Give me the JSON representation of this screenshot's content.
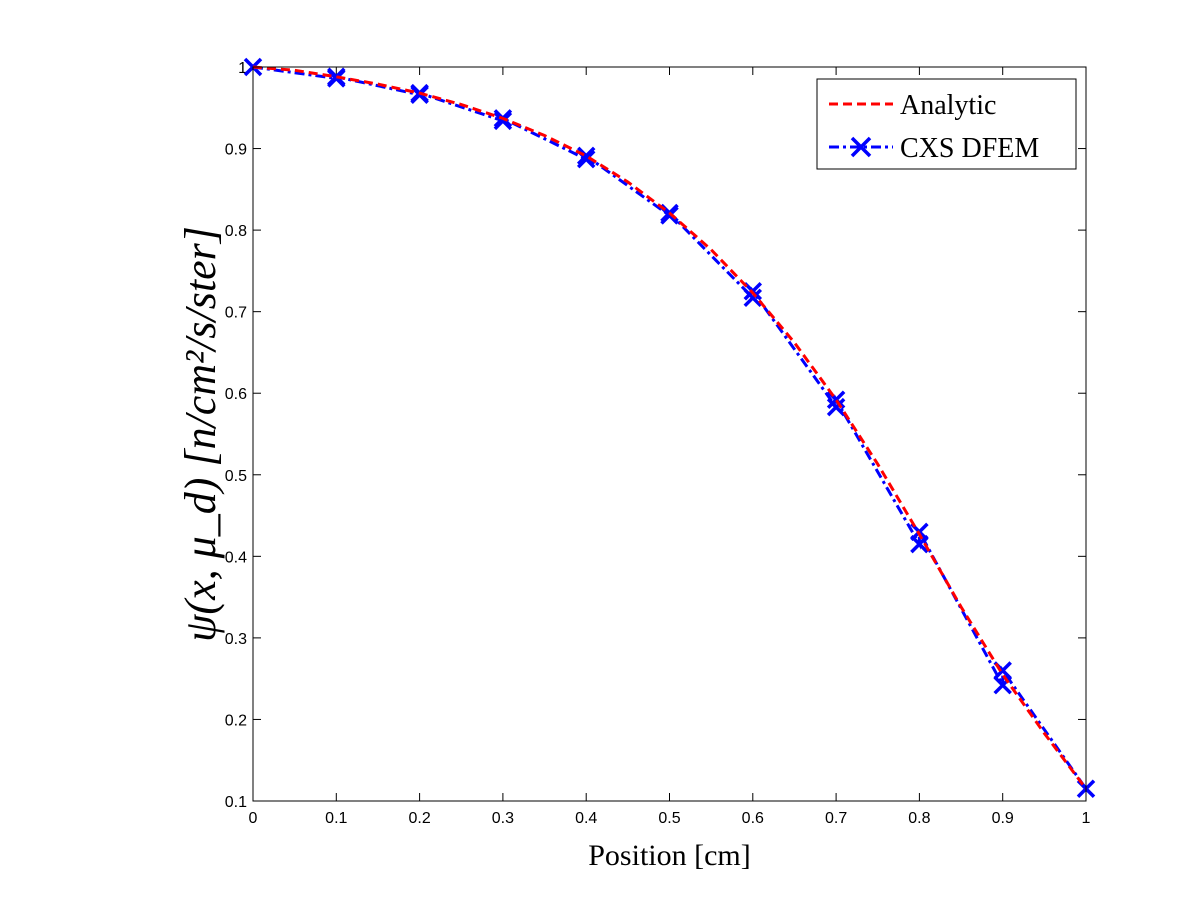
{
  "chart_data": {
    "type": "line",
    "xlabel": "Position [cm]",
    "ylabel": "ψ(x, μ_d)  [n/cm²/s/ster]",
    "xlim": [
      0,
      1
    ],
    "ylim": [
      0.1,
      1
    ],
    "xticks": [
      "0",
      "0.1",
      "0.2",
      "0.3",
      "0.4",
      "0.5",
      "0.6",
      "0.7",
      "0.8",
      "0.9",
      "1"
    ],
    "yticks": [
      "0.1",
      "0.2",
      "0.3",
      "0.4",
      "0.5",
      "0.6",
      "0.7",
      "0.8",
      "0.9",
      "1"
    ],
    "grid": false,
    "legend_position": "top-right",
    "series": [
      {
        "name": "Analytic",
        "color": "#ff0000",
        "style": "dashed",
        "x": [
          0,
          0.05,
          0.1,
          0.15,
          0.2,
          0.25,
          0.3,
          0.35,
          0.4,
          0.45,
          0.5,
          0.55,
          0.6,
          0.65,
          0.7,
          0.75,
          0.8,
          0.85,
          0.9,
          0.95,
          1.0
        ],
        "y": [
          1.0,
          0.996,
          0.988,
          0.979,
          0.968,
          0.954,
          0.937,
          0.916,
          0.891,
          0.859,
          0.821,
          0.776,
          0.723,
          0.662,
          0.592,
          0.513,
          0.427,
          0.338,
          0.255,
          0.183,
          0.115
        ]
      },
      {
        "name": "CXS DFEM",
        "color": "#0000ff",
        "style": "dash-dot",
        "marker": "x",
        "x": [
          0,
          0.1,
          0.1,
          0.2,
          0.2,
          0.3,
          0.3,
          0.4,
          0.4,
          0.5,
          0.5,
          0.6,
          0.6,
          0.7,
          0.7,
          0.8,
          0.8,
          0.9,
          0.9,
          1.0
        ],
        "y": [
          1.0,
          0.986,
          0.988,
          0.966,
          0.968,
          0.934,
          0.937,
          0.887,
          0.891,
          0.818,
          0.821,
          0.717,
          0.725,
          0.583,
          0.592,
          0.415,
          0.43,
          0.242,
          0.26,
          0.115
        ]
      }
    ]
  }
}
